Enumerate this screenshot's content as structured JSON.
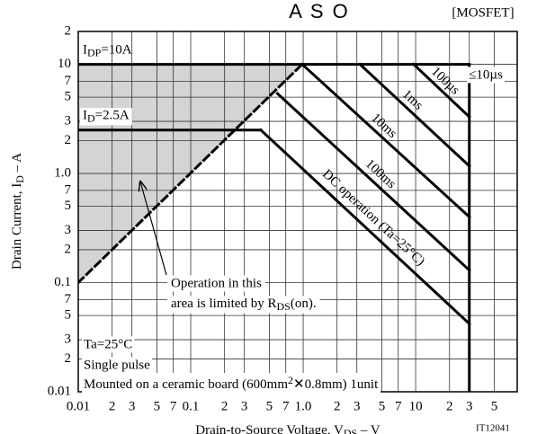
{
  "chart_data": {
    "type": "line",
    "title": "A S O",
    "tag": "[MOSFET]",
    "code": "IT12041",
    "log_x": true,
    "log_y": true,
    "grid": true,
    "x_label": [
      "Drain-to-Source Voltage, V",
      "DS",
      " – V"
    ],
    "y_label": [
      "Drain Current, I",
      "D",
      " – A"
    ],
    "xlim": [
      0.01,
      80
    ],
    "ylim": [
      0.01,
      20
    ],
    "xticks": [
      0.01,
      {
        "value": 0.02,
        "label": "2"
      },
      {
        "value": 0.03,
        "label": "3"
      },
      {
        "value": 0.05,
        "label": "5"
      },
      {
        "value": 0.07,
        "label": "7"
      },
      0.1,
      {
        "value": 0.2,
        "label": "2"
      },
      {
        "value": 0.3,
        "label": "3"
      },
      {
        "value": 0.5,
        "label": "5"
      },
      {
        "value": 0.7,
        "label": "7"
      },
      {
        "value": 1,
        "label": "1.0"
      },
      2,
      3,
      5,
      7,
      10,
      {
        "value": 20,
        "label": "2"
      },
      {
        "value": 30,
        "label": "3"
      },
      {
        "value": 50,
        "label": "5"
      }
    ],
    "yticks": [
      0.01,
      {
        "value": 0.02,
        "label": "2"
      },
      {
        "value": 0.03,
        "label": "3"
      },
      {
        "value": 0.05,
        "label": "5"
      },
      {
        "value": 0.07,
        "label": "7"
      },
      0.1,
      {
        "value": 0.2,
        "label": "2"
      },
      {
        "value": 0.3,
        "label": "3"
      },
      {
        "value": 0.5,
        "label": "5"
      },
      {
        "value": 0.7,
        "label": "7"
      },
      {
        "value": 1,
        "label": "1.0"
      },
      2,
      3,
      5,
      7,
      10,
      {
        "value": 20,
        "label": "2"
      }
    ],
    "shade_color": "#d4d4d4",
    "series": [
      {
        "label": [
          "I",
          "DP",
          "=10A"
        ],
        "color": "#000000",
        "x": [
          0.01,
          30
        ],
        "values": [
          10,
          10
        ]
      },
      {
        "label": [
          "I",
          "D",
          "=2.5A"
        ],
        "color": "#000000",
        "x": [
          0.01,
          0.42
        ],
        "values": [
          2.5,
          2.5
        ]
      },
      {
        "style": "dashed",
        "color": "#000000",
        "x": [
          0.01,
          0.98
        ],
        "values": [
          0.1,
          10
        ]
      },
      {
        "color": "#000000",
        "x": [
          30,
          30
        ],
        "values": [
          0.01,
          10
        ]
      },
      {
        "name": "100µs",
        "color": "#000000",
        "x": [
          9.6,
          30
        ],
        "values": [
          10,
          3.3
        ]
      },
      {
        "name": "1ms",
        "color": "#000000",
        "x": [
          3.2,
          30
        ],
        "values": [
          10,
          1.17
        ]
      },
      {
        "name": "10ms",
        "color": "#000000",
        "x": [
          0.98,
          30
        ],
        "values": [
          10,
          0.4
        ]
      },
      {
        "name": "100ms",
        "color": "#000000",
        "x": [
          0.59,
          30
        ],
        "values": [
          5.4,
          0.13
        ]
      },
      {
        "name": "DC operation (Ta=25°C)",
        "color": "#000000",
        "x": [
          0.42,
          30
        ],
        "values": [
          2.5,
          0.042
        ]
      }
    ],
    "annotations": {
      "pulse_limit": "≤10µs",
      "conditions": [
        "Ta=25°C",
        "Single pulse",
        [
          "Mounted on a ceramic board (600mm",
          "2",
          "✕0.8mm) 1unit"
        ]
      ],
      "rds_note": [
        "Operation in this",
        [
          "area is limited by R",
          "DS",
          "(on)."
        ]
      ]
    }
  }
}
